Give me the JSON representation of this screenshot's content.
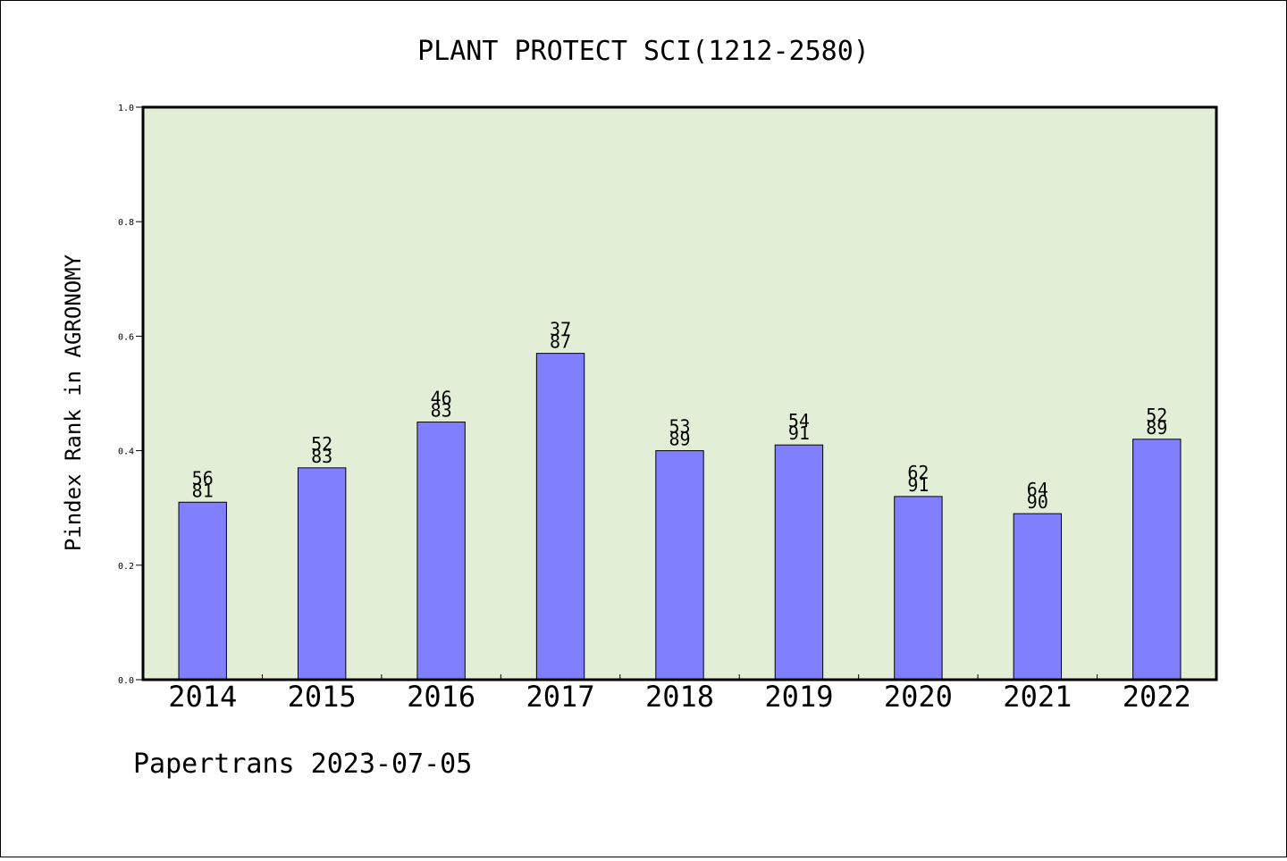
{
  "chart_data": {
    "type": "bar",
    "title": "PLANT PROTECT SCI(1212-2580)",
    "ylabel": "Pindex Rank in AGRONOMY",
    "xlabel": "",
    "footer": "Papertrans 2023-07-05",
    "ylim": [
      0,
      1.0
    ],
    "yticks": [
      "0.0",
      "0.2",
      "0.4",
      "0.6",
      "0.8",
      "1.0"
    ],
    "categories": [
      "2014",
      "2015",
      "2016",
      "2017",
      "2018",
      "2019",
      "2020",
      "2021",
      "2022"
    ],
    "values": [
      0.31,
      0.37,
      0.45,
      0.57,
      0.4,
      0.41,
      0.32,
      0.29,
      0.42
    ],
    "label_top": [
      "56",
      "52",
      "46",
      "37",
      "53",
      "54",
      "62",
      "64",
      "52"
    ],
    "label_bottom": [
      "81",
      "83",
      "83",
      "87",
      "89",
      "91",
      "91",
      "90",
      "89"
    ],
    "grid": false,
    "legend": "none",
    "colors": {
      "bar_fill": "#8080ff",
      "plot_background": "#e2efd6",
      "axis": "#000000"
    }
  }
}
